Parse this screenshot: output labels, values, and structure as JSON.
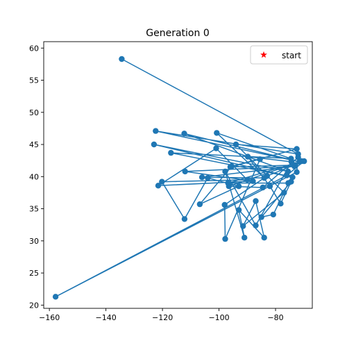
{
  "chart_data": {
    "type": "line",
    "title": "Generation 0",
    "xlabel": "",
    "ylabel": "",
    "xlim": [
      -162,
      -67
    ],
    "ylim": [
      19.5,
      61.0
    ],
    "x_ticks": [
      -160,
      -140,
      -120,
      -100,
      -80
    ],
    "y_ticks": [
      20,
      25,
      30,
      35,
      40,
      45,
      50,
      55,
      60
    ],
    "x_tick_labels": [
      "−160",
      "−140",
      "−120",
      "−100",
      "−80"
    ],
    "y_tick_labels": [
      "20",
      "25",
      "30",
      "35",
      "40",
      "45",
      "50",
      "55",
      "60"
    ],
    "grid": false,
    "legend": {
      "placement": "top-right",
      "entries": [
        {
          "label": "start",
          "marker": "star",
          "color": "#ff0000"
        }
      ]
    },
    "series": [
      {
        "color": "#1f77b4",
        "points": [
          [
            -134.4,
            58.3
          ],
          [
            -72.0,
            43.5
          ],
          [
            -122.4,
            47.1
          ],
          [
            -71.5,
            42.3
          ],
          [
            -112.3,
            46.7
          ],
          [
            -75.6,
            40.8
          ],
          [
            -123.0,
            45.0
          ],
          [
            -74.0,
            39.9
          ],
          [
            -117.0,
            43.7
          ],
          [
            -74.5,
            42.8
          ],
          [
            -100.8,
            46.8
          ],
          [
            -84.0,
            39.8
          ],
          [
            -106.0,
            39.9
          ],
          [
            -73.3,
            41.6
          ],
          [
            -112.0,
            40.8
          ],
          [
            -88.0,
            39.3
          ],
          [
            -121.5,
            38.6
          ],
          [
            -101.0,
            44.4
          ],
          [
            -90.0,
            39.5
          ],
          [
            -120.2,
            39.2
          ],
          [
            -112.2,
            33.4
          ],
          [
            -104.0,
            39.8
          ],
          [
            -93.0,
            38.5
          ],
          [
            -106.8,
            35.7
          ],
          [
            -95.5,
            41.6
          ],
          [
            -72.5,
            44.3
          ],
          [
            -94.0,
            45.0
          ],
          [
            -77.0,
            37.5
          ],
          [
            -91.5,
            32.3
          ],
          [
            -87.0,
            36.2
          ],
          [
            -84.0,
            30.5
          ],
          [
            -93.0,
            34.8
          ],
          [
            -91.0,
            30.5
          ],
          [
            -97.8,
            40.8
          ],
          [
            -87.0,
            32.4
          ],
          [
            -74.4,
            42.3
          ],
          [
            -89.8,
            43.1
          ],
          [
            -82.0,
            38.5
          ],
          [
            -78.2,
            35.8
          ],
          [
            -74.5,
            39.2
          ],
          [
            -85.0,
            33.7
          ],
          [
            -80.8,
            34.1
          ],
          [
            -75.5,
            39.0
          ],
          [
            -96.8,
            39.0
          ],
          [
            -70.8,
            42.4
          ],
          [
            -73.0,
            41.8
          ],
          [
            -96.0,
            41.5
          ],
          [
            -85.5,
            42.7
          ],
          [
            -97.8,
            30.3
          ],
          [
            -98.0,
            35.6
          ],
          [
            -83.0,
            40.1
          ],
          [
            -69.9,
            42.4
          ],
          [
            -76.0,
            40.2
          ],
          [
            -157.8,
            21.3
          ],
          [
            -72.5,
            40.7
          ],
          [
            -72.0,
            43.0
          ],
          [
            -84.5,
            38.3
          ],
          [
            -96.5,
            38.5
          ],
          [
            -74.0,
            41.9
          ]
        ]
      }
    ]
  }
}
